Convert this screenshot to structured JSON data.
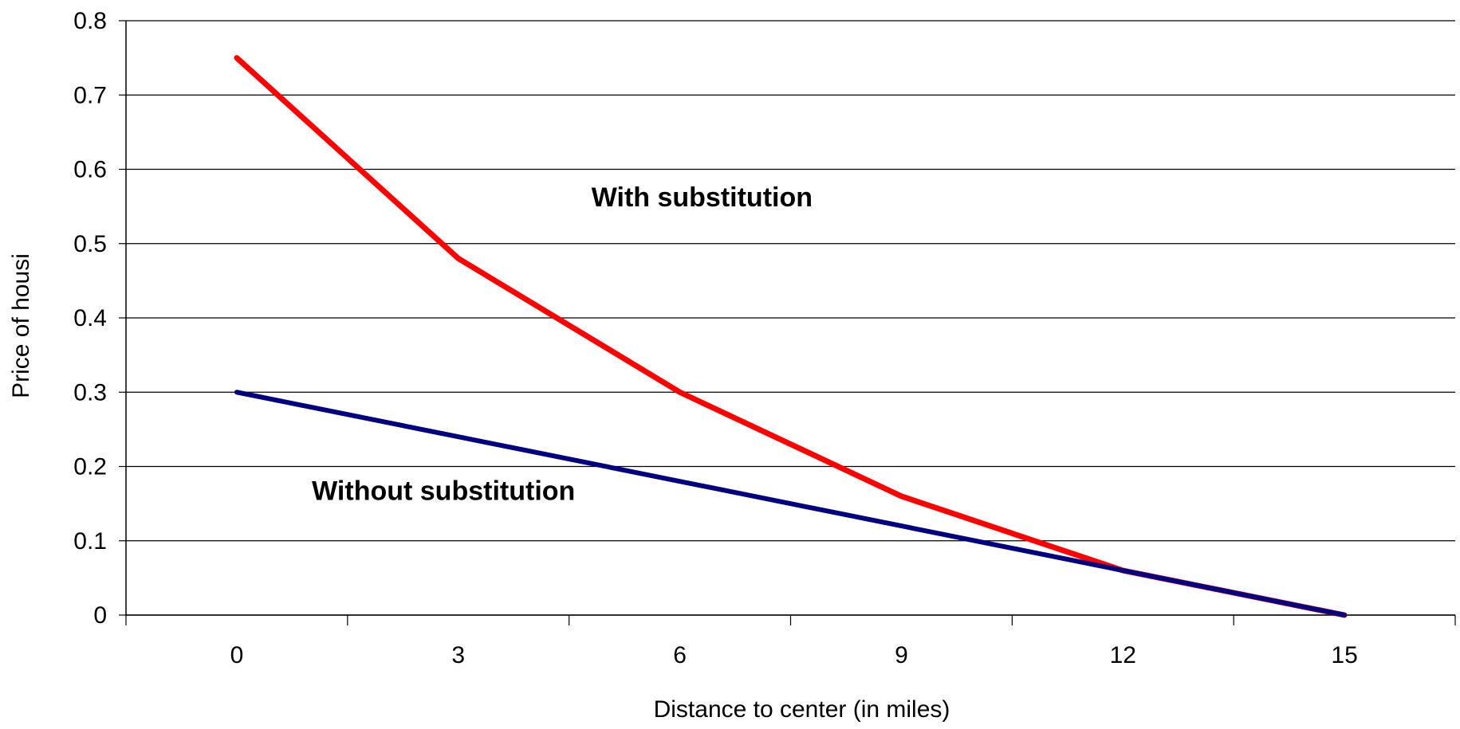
{
  "chart_data": {
    "type": "line",
    "title": "",
    "xlabel": "Distance to center (in miles)",
    "ylabel": "Price of housi",
    "x": [
      0,
      3,
      6,
      9,
      12,
      15
    ],
    "x_tick_labels": [
      "0",
      "3",
      "6",
      "9",
      "12",
      "15"
    ],
    "y_tick_labels": [
      "0",
      "0.1",
      "0.2",
      "0.3",
      "0.4",
      "0.5",
      "0.6",
      "0.7",
      "0.8"
    ],
    "xlim": [
      -1.5,
      16.5
    ],
    "ylim": [
      0,
      0.8
    ],
    "grid": "horizontal",
    "legend": "none",
    "series": [
      {
        "name": "With substitution",
        "color": "#ff0000",
        "values": [
          0.75,
          0.48,
          0.3,
          0.16,
          0.06,
          0.0
        ]
      },
      {
        "name": "Without substitution",
        "color": "#000080",
        "values": [
          0.3,
          0.24,
          0.18,
          0.12,
          0.06,
          0.0
        ]
      }
    ],
    "annotations": [
      {
        "text": "With substitution",
        "x": 6.3,
        "y": 0.55
      },
      {
        "text": "Without substitution",
        "x": 2.8,
        "y": 0.155
      }
    ]
  }
}
